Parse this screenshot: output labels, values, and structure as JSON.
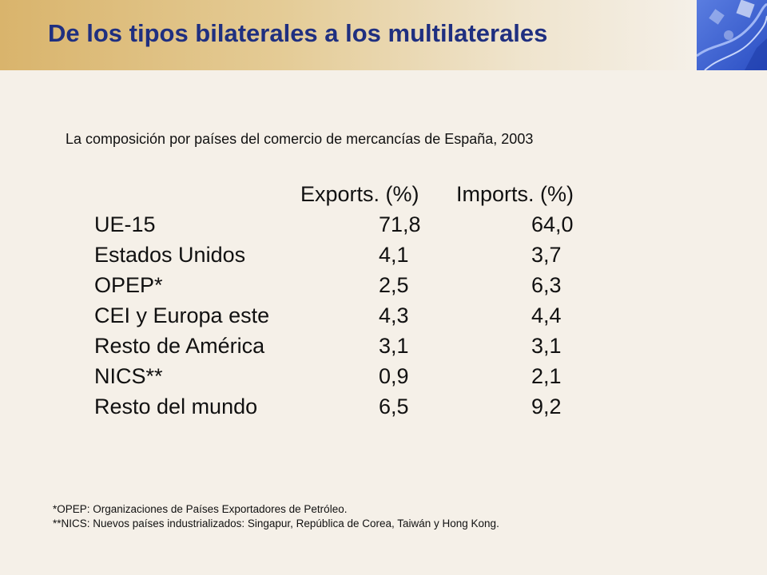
{
  "header": {
    "title": "De los tipos bilaterales a los multilaterales"
  },
  "subtitle": "La composición por países del comercio de mercancías de España, 2003",
  "table": {
    "columns": [
      "Exports. (%)",
      "Imports. (%)"
    ],
    "rows": [
      {
        "name": "UE-15",
        "exports": "71,8",
        "imports": "64,0"
      },
      {
        "name": "Estados Unidos",
        "exports": "4,1",
        "imports": "3,7"
      },
      {
        "name": "OPEP*",
        "exports": "2,5",
        "imports": "6,3"
      },
      {
        "name": "CEI y Europa este",
        "exports": "4,3",
        "imports": "4,4"
      },
      {
        "name": "Resto de América",
        "exports": "3,1",
        "imports": "3,1"
      },
      {
        "name": "NICS**",
        "exports": "0,9",
        "imports": "2,1"
      },
      {
        "name": "Resto del mundo",
        "exports": "6,5",
        "imports": "9,2"
      }
    ]
  },
  "footnotes": [
    "*OPEP:  Organizaciones de Países Exportadores de Petróleo.",
    "**NICS: Nuevos países industrializados: Singapur, República de Corea, Taiwán y Hong Kong."
  ],
  "colors": {
    "title": "#1f2f80",
    "background": "#f5f0e8",
    "header_gold": "#d9b46c",
    "corner_blue": "#3a5fd0"
  }
}
